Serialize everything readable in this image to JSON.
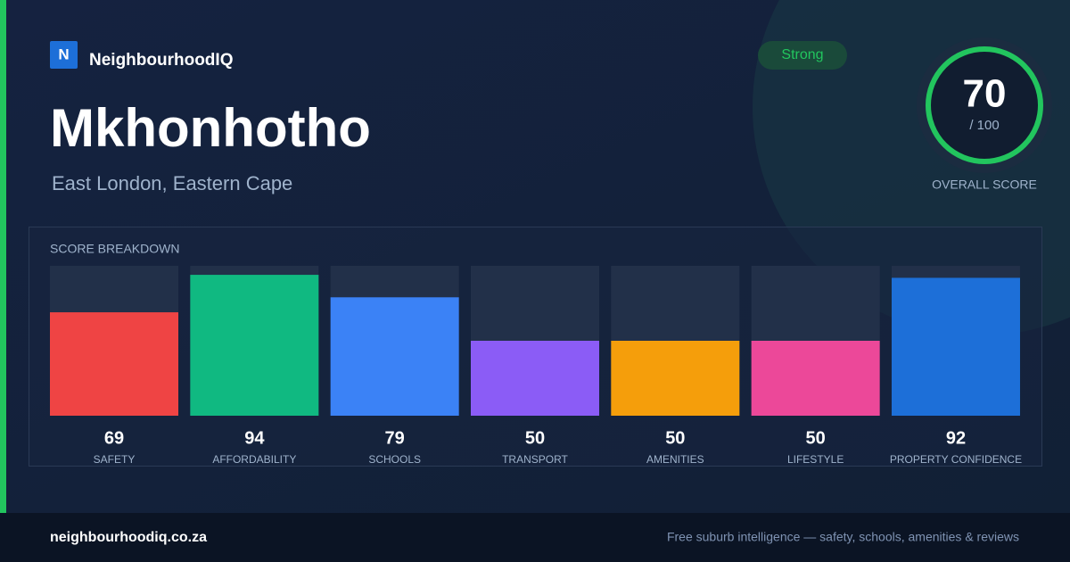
{
  "brand": {
    "logo": "N",
    "name": "NeighbourhoodIQ"
  },
  "header": {
    "title": "Mkhonhotho",
    "subtitle": "East London, Eastern Cape",
    "badge": "Strong"
  },
  "overall": {
    "score": 70,
    "out_of": "/ 100",
    "label": "OVERALL SCORE"
  },
  "chart_data": {
    "type": "bar",
    "title": "SCORE BREAKDOWN",
    "categories": [
      "SAFETY",
      "AFFORDABILITY",
      "SCHOOLS",
      "TRANSPORT",
      "AMENITIES",
      "LIFESTYLE",
      "PROPERTY CONFIDENCE"
    ],
    "values": [
      69,
      94,
      79,
      50,
      50,
      50,
      92
    ],
    "colors": [
      "#ef4444",
      "#10b981",
      "#3b82f6",
      "#8b5cf6",
      "#f59e0b",
      "#ec4899",
      "#1d6fd8"
    ],
    "ylim": [
      0,
      100
    ]
  },
  "footer": {
    "site": "neighbourhoodiq.co.za",
    "tagline": "Free suburb intelligence — safety, schools, amenities & reviews"
  }
}
